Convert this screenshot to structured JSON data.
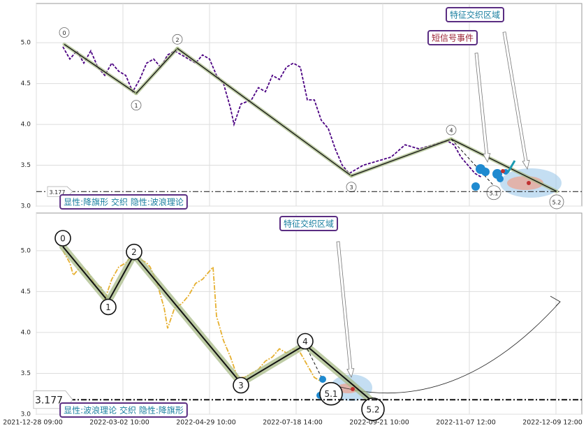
{
  "chart_data": [
    {
      "type": "line",
      "color": "#4b0082",
      "xlim": [
        0,
        781
      ],
      "xticks": [
        0,
        124,
        248,
        372,
        496,
        620,
        744
      ],
      "ylim": [
        3.0,
        5.48
      ],
      "yticks": [
        {
          "value": 3,
          "label": "3.0"
        },
        3.5,
        {
          "value": 4,
          "label": "4.0"
        },
        4.5,
        {
          "value": 5,
          "label": "5.0"
        }
      ],
      "grid": true,
      "x": [
        38,
        48,
        58,
        68,
        78,
        88,
        98,
        108,
        118,
        128,
        138,
        148,
        158,
        168,
        178,
        188,
        198,
        208,
        218,
        228,
        238,
        248,
        258,
        268,
        278,
        283,
        293,
        308,
        318,
        328,
        338,
        348,
        358,
        368,
        378,
        388,
        398,
        408,
        418,
        428,
        438,
        448,
        458,
        468,
        488,
        508,
        528,
        548,
        568,
        588,
        598,
        608,
        618,
        628,
        638
      ],
      "values": [
        4.95,
        4.8,
        4.9,
        4.75,
        4.9,
        4.7,
        4.6,
        4.75,
        4.65,
        4.6,
        4.4,
        4.55,
        4.75,
        4.8,
        4.7,
        4.85,
        4.9,
        4.85,
        4.8,
        4.75,
        4.85,
        4.8,
        4.6,
        4.5,
        4.2,
        4.0,
        4.25,
        4.3,
        4.45,
        4.4,
        4.6,
        4.55,
        4.7,
        4.75,
        4.7,
        4.3,
        4.3,
        4.05,
        3.95,
        3.7,
        3.5,
        3.4,
        3.45,
        3.5,
        3.55,
        3.6,
        3.75,
        3.7,
        3.75,
        3.8,
        3.75,
        3.6,
        3.5,
        3.4,
        3.35
      ],
      "waves": {
        "labels": [
          "0",
          "1",
          "2",
          "3",
          "4",
          "5.1",
          "5.2"
        ],
        "x": [
          40,
          143,
          202,
          451,
          594,
          655,
          745
        ],
        "values": [
          4.98,
          4.38,
          4.93,
          3.37,
          3.82,
          3.25,
          3.18
        ]
      },
      "hline": 3.177,
      "annotations": [
        "特征交织区域",
        "短信号事件",
        "显性:降旗形 交织 隐性:波浪理论"
      ]
    },
    {
      "type": "line",
      "color": "#e6b030",
      "xlim": [
        0,
        781
      ],
      "xticks": [
        {
          "value": 0,
          "label": "2021-12-28 09:00"
        },
        {
          "value": 124,
          "label": "2022-03-02 10:00"
        },
        {
          "value": 248,
          "label": "2022-04-29 10:00"
        },
        {
          "value": 372,
          "label": "2022-07-18 14:00"
        },
        {
          "value": 496,
          "label": "2022-09-21 10:00"
        },
        {
          "value": 620,
          "label": "2022-11-07 12:00"
        },
        {
          "value": 744,
          "label": "2022-12-09 12:00"
        }
      ],
      "ylim": [
        3.0,
        5.46
      ],
      "yticks": [
        {
          "value": 3,
          "label": "3.0"
        },
        3.5,
        {
          "value": 4,
          "label": "4.0"
        },
        4.5,
        {
          "value": 5,
          "label": "5.0"
        }
      ],
      "grid": true,
      "x": [
        38,
        48,
        53,
        63,
        73,
        83,
        93,
        98,
        108,
        118,
        128,
        138,
        148,
        158,
        163,
        173,
        183,
        188,
        198,
        208,
        218,
        228,
        238,
        248,
        253,
        258,
        268,
        278,
        288,
        298,
        308,
        318,
        328,
        338,
        348,
        358,
        368,
        378,
        388,
        398,
        408
      ],
      "values": [
        5.0,
        4.85,
        4.7,
        4.8,
        4.75,
        4.6,
        4.55,
        4.4,
        4.65,
        4.8,
        4.85,
        4.95,
        4.9,
        4.85,
        4.8,
        4.6,
        4.3,
        4.05,
        4.3,
        4.35,
        4.45,
        4.6,
        4.65,
        4.75,
        4.8,
        4.2,
        3.9,
        3.7,
        3.45,
        3.45,
        3.5,
        3.55,
        3.65,
        3.7,
        3.8,
        3.75,
        3.8,
        3.75,
        3.6,
        3.45,
        3.4
      ],
      "waves": {
        "labels": [
          "0",
          "1",
          "2",
          "3",
          "4",
          "5.1",
          "5.2"
        ],
        "x": [
          38,
          103,
          140,
          293,
          385,
          420,
          478
        ],
        "values": [
          5.05,
          4.38,
          4.95,
          3.38,
          3.85,
          3.25,
          3.18
        ]
      },
      "hline": 3.177,
      "annotations": [
        "特征交织区域",
        "显性:波浪理论 交织 隐性:降旗形"
      ]
    }
  ]
}
